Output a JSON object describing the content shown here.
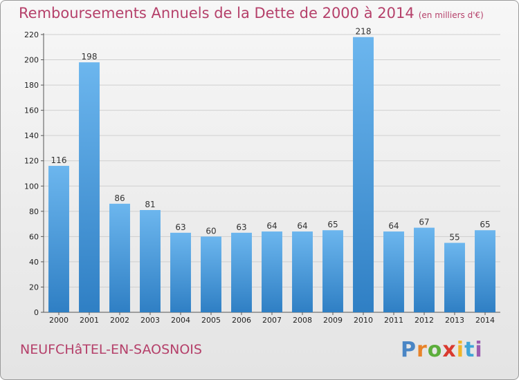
{
  "header": {
    "title": "Remboursements Annuels de la Dette de 2000 à 2014",
    "unit": "(en milliers d'€)"
  },
  "footer": {
    "commune": "NEUFCHâTEL-EN-SAOSNOIS"
  },
  "logo": {
    "text": "Proxiti",
    "letter_colors": [
      "#4a86c5",
      "#e8832a",
      "#5cae3c",
      "#d93a2f",
      "#f0b528",
      "#3fa5d8",
      "#9b5cb0"
    ]
  },
  "colors": {
    "bar_light": "#6cb6ee",
    "bar_dark": "#2f7fc4",
    "grid": "#cfcfcf"
  },
  "chart_data": {
    "type": "bar",
    "title": "Remboursements Annuels de la Dette de 2000 à 2014",
    "unit": "(en milliers d'€)",
    "categories": [
      "2000",
      "2001",
      "2002",
      "2003",
      "2004",
      "2005",
      "2006",
      "2007",
      "2008",
      "2009",
      "2010",
      "2011",
      "2012",
      "2013",
      "2014"
    ],
    "values": [
      116,
      198,
      86,
      81,
      63,
      60,
      63,
      64,
      64,
      65,
      218,
      64,
      67,
      55,
      65
    ],
    "ylim": [
      0,
      220
    ],
    "yticks": [
      0,
      20,
      40,
      60,
      80,
      100,
      120,
      140,
      160,
      180,
      200,
      220
    ],
    "grid": true,
    "data_labels": true
  }
}
